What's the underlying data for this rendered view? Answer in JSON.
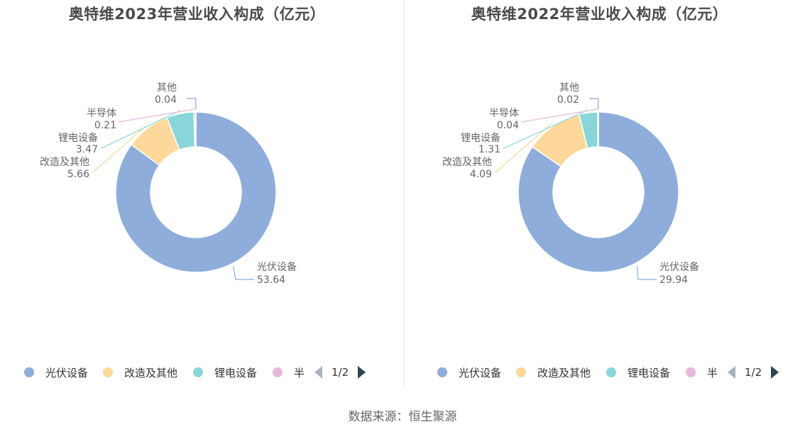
{
  "colors": {
    "光伏设备": "#8eaddb",
    "改造及其他": "#fdd89a",
    "锂电设备": "#88d6da",
    "半导体": "#e7b8dc",
    "其他": "#9d9ae4"
  },
  "legend": {
    "items": [
      "光伏设备",
      "改造及其他",
      "锂电设备",
      "半"
    ],
    "pager": "1/2"
  },
  "source": "数据来源：恒生聚源",
  "chart_data": [
    {
      "type": "pie",
      "title": "奥特维2023年营业收入构成（亿元）",
      "slices": [
        {
          "name": "光伏设备",
          "value": 53.64,
          "value_label": "53.64"
        },
        {
          "name": "改造及其他",
          "value": 5.66,
          "value_label": "5.66"
        },
        {
          "name": "锂电设备",
          "value": 3.47,
          "value_label": "3.47"
        },
        {
          "name": "半导体",
          "value": 0.21,
          "value_label": "0.21"
        },
        {
          "name": "其他",
          "value": 0.04,
          "value_label": "0.04"
        }
      ]
    },
    {
      "type": "pie",
      "title": "奥特维2022年营业收入构成（亿元）",
      "slices": [
        {
          "name": "光伏设备",
          "value": 29.94,
          "value_label": "29.94"
        },
        {
          "name": "改造及其他",
          "value": 4.09,
          "value_label": "4.09"
        },
        {
          "name": "锂电设备",
          "value": 1.31,
          "value_label": "1.31"
        },
        {
          "name": "半导体",
          "value": 0.04,
          "value_label": "0.04"
        },
        {
          "name": "其他",
          "value": 0.02,
          "value_label": "0.02"
        }
      ]
    }
  ]
}
